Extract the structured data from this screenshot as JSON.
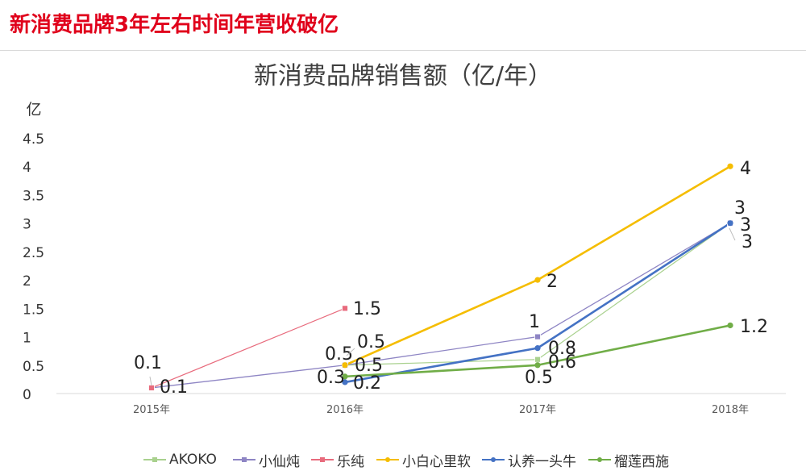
{
  "page": {
    "heading": "新消费品牌3年左右时间年营收破亿"
  },
  "chart_data": {
    "type": "line",
    "title": "新消费品牌销售额（亿/年）",
    "ylabel": "亿",
    "xlabel": "",
    "categories": [
      "2015年",
      "2016年",
      "2017年",
      "2018年"
    ],
    "ylim": [
      0,
      4.5
    ],
    "yticks": [
      "0",
      "0.5",
      "1",
      "1.5",
      "2",
      "2.5",
      "3",
      "3.5",
      "4",
      "4.5"
    ],
    "grid": false,
    "legend_position": "bottom",
    "series": [
      {
        "name": "AKOKO",
        "values": [
          null,
          0.5,
          0.6,
          3
        ],
        "labels": [
          null,
          "0.5",
          "0.6",
          "3"
        ],
        "color": "#a9d18e",
        "marker": "square"
      },
      {
        "name": "小仙炖",
        "values": [
          0.1,
          0.5,
          1,
          3
        ],
        "labels": [
          "0.1",
          "0.5",
          "1",
          "3"
        ],
        "color": "#8e85c4",
        "marker": "square"
      },
      {
        "name": "乐纯",
        "values": [
          0.1,
          1.5,
          null,
          null
        ],
        "labels": [
          "0.1",
          "1.5",
          null,
          null
        ],
        "color": "#e86b7d",
        "marker": "square"
      },
      {
        "name": "小白心里软",
        "values": [
          null,
          0.5,
          2,
          4
        ],
        "labels": [
          null,
          "0.5",
          "2",
          "4"
        ],
        "color": "#f5bd00",
        "marker": "circle"
      },
      {
        "name": "认养一头牛",
        "values": [
          null,
          0.2,
          0.8,
          3
        ],
        "labels": [
          null,
          "0.2",
          "0.8",
          "3"
        ],
        "color": "#4472c4",
        "marker": "circle"
      },
      {
        "name": "榴莲西施",
        "values": [
          null,
          0.3,
          0.5,
          1.2
        ],
        "labels": [
          null,
          "0.3",
          "0.5",
          "1.2"
        ],
        "color": "#70ad47",
        "marker": "circle"
      }
    ]
  }
}
